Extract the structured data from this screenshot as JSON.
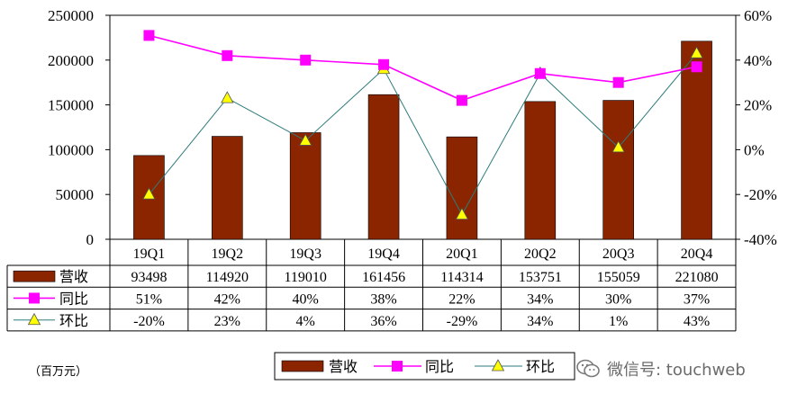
{
  "chart_data": {
    "type": "bar",
    "categories": [
      "19Q1",
      "19Q2",
      "19Q3",
      "19Q4",
      "20Q1",
      "20Q2",
      "20Q3",
      "20Q4"
    ],
    "series": [
      {
        "name": "营收",
        "kind": "bar",
        "axis": "left",
        "color": "#8B2500",
        "values": [
          93498,
          114920,
          119010,
          161456,
          114314,
          153751,
          155059,
          221080
        ]
      },
      {
        "name": "同比",
        "kind": "line",
        "axis": "right",
        "color": "#FF00FF",
        "marker": "square",
        "values": [
          51,
          42,
          40,
          38,
          22,
          34,
          30,
          37
        ],
        "labels": [
          "51%",
          "42%",
          "40%",
          "38%",
          "22%",
          "34%",
          "30%",
          "37%"
        ]
      },
      {
        "name": "环比",
        "kind": "line",
        "axis": "right",
        "color": "#2E7B7B",
        "marker": "triangle",
        "marker_color": "#FFFF00",
        "values": [
          -20,
          23,
          4,
          36,
          -29,
          34,
          1,
          43
        ],
        "labels": [
          "-20%",
          "23%",
          "4%",
          "36%",
          "-29%",
          "34%",
          "1%",
          "43%"
        ]
      }
    ],
    "ylim_left": [
      0,
      250000
    ],
    "yticks_left": [
      "250000",
      "200000",
      "150000",
      "100000",
      "50000",
      "0"
    ],
    "ylim_right": [
      -40,
      60
    ],
    "yticks_right": [
      "60%",
      "40%",
      "20%",
      "0%",
      "-20%",
      "-40%"
    ],
    "unit_label": "（百万元）",
    "legend": [
      "营收",
      "同比",
      "环比"
    ],
    "legend_position": "bottom",
    "watermark": "微信号: touchweb"
  }
}
